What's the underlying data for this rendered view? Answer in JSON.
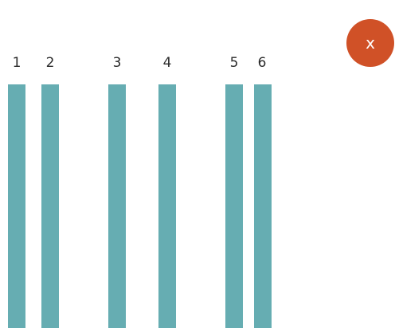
{
  "colors": {
    "bar": "#66adb2",
    "close_button": "#d05127"
  },
  "close_button": {
    "label": "x",
    "icon": "close-icon"
  },
  "bars": [
    {
      "label": "1"
    },
    {
      "label": "2"
    },
    {
      "label": "3"
    },
    {
      "label": "4"
    },
    {
      "label": "5"
    },
    {
      "label": "6"
    }
  ]
}
